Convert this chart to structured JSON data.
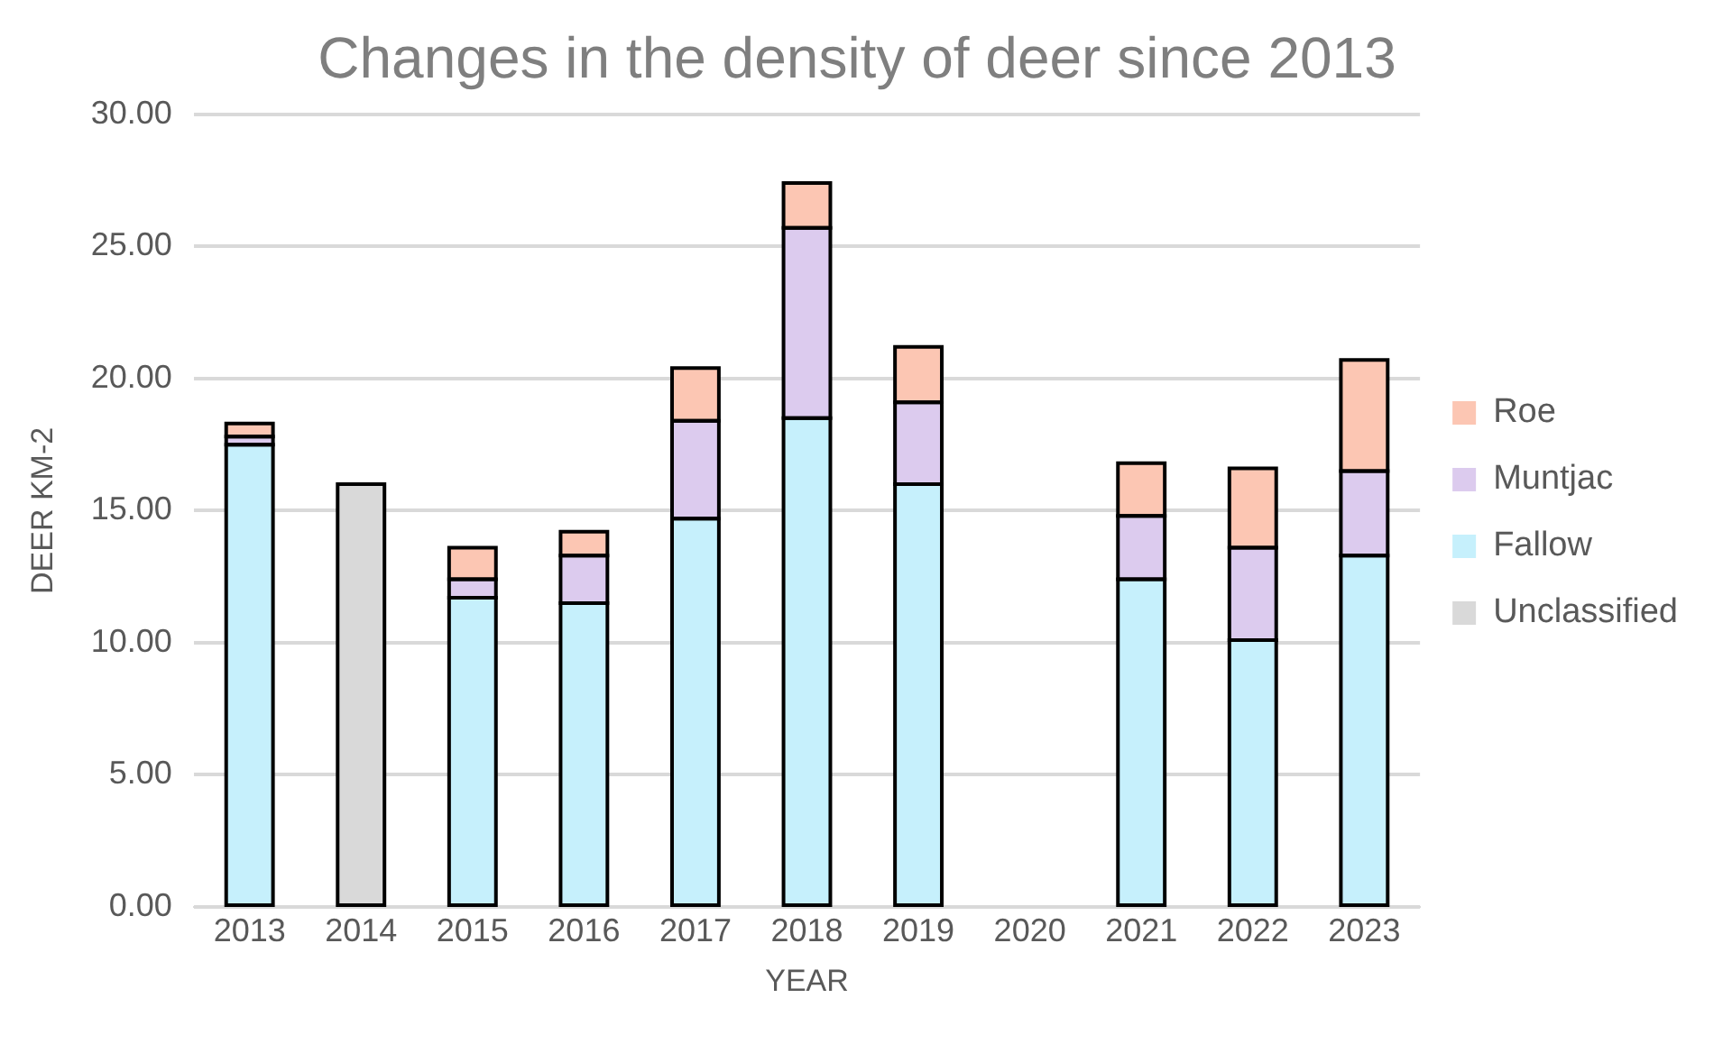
{
  "chart_data": {
    "type": "bar",
    "title": "Changes in the density of deer since 2013",
    "xlabel": "YEAR",
    "ylabel": "DEER KM-2",
    "categories": [
      "2013",
      "2014",
      "2015",
      "2016",
      "2017",
      "2018",
      "2019",
      "2020",
      "2021",
      "2022",
      "2023"
    ],
    "stacked": true,
    "series": [
      {
        "name": "Unclassified",
        "color": "#d9d9d9",
        "values": [
          null,
          16.0,
          null,
          null,
          null,
          null,
          null,
          null,
          null,
          null,
          null
        ]
      },
      {
        "name": "Fallow",
        "color": "#c6f0fc",
        "values": [
          17.5,
          null,
          11.7,
          11.5,
          14.7,
          18.5,
          16.0,
          null,
          12.4,
          10.1,
          13.3
        ]
      },
      {
        "name": "Muntjac",
        "color": "#dccbee",
        "values": [
          0.3,
          null,
          0.7,
          1.8,
          3.7,
          7.2,
          3.1,
          null,
          2.4,
          3.5,
          3.2
        ]
      },
      {
        "name": "Roe",
        "color": "#fcc6b3",
        "values": [
          0.5,
          null,
          1.2,
          0.9,
          2.0,
          1.7,
          2.1,
          null,
          2.0,
          3.0,
          4.2
        ]
      }
    ],
    "ylim": [
      0,
      30
    ],
    "yticks": [
      {
        "value": 0,
        "label": "0.00"
      },
      {
        "value": 5,
        "label": "5.00"
      },
      {
        "value": 10,
        "label": "10.00"
      },
      {
        "value": 15,
        "label": "15.00"
      },
      {
        "value": 20,
        "label": "20.00"
      },
      {
        "value": 25,
        "label": "25.00"
      },
      {
        "value": 30,
        "label": "30.00"
      }
    ],
    "grid": "y",
    "legend": "right"
  }
}
